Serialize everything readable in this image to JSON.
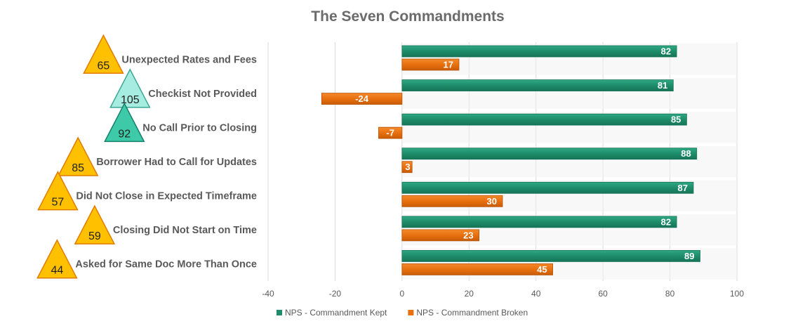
{
  "chart_data": {
    "type": "bar",
    "orientation": "horizontal",
    "title": "The Seven Commandments",
    "categories": [
      "Unexpected Rates and Fees",
      "Checkist Not Provided",
      "No Call Prior to Closing",
      "Borrower Had to Call for Updates",
      "Did Not Close in Expected Timeframe",
      "Closing Did Not Start on Time",
      "Asked for Same Doc More Than Once"
    ],
    "category_badges": [
      {
        "value": "65",
        "color": "#ffc000"
      },
      {
        "value": "105",
        "color": "#a6ece0"
      },
      {
        "value": "92",
        "color": "#3ecaa8"
      },
      {
        "value": "85",
        "color": "#ffc000"
      },
      {
        "value": "57",
        "color": "#ffc000"
      },
      {
        "value": "59",
        "color": "#ffc000"
      },
      {
        "value": "44",
        "color": "#ffc000"
      }
    ],
    "series": [
      {
        "name": "NPS - Commandment Kept",
        "color": "#1e8c6a",
        "values": [
          82,
          81,
          85,
          88,
          87,
          82,
          89
        ]
      },
      {
        "name": "NPS - Commandment Broken",
        "color": "#e8700f",
        "values": [
          17,
          -24,
          -7,
          3,
          30,
          23,
          45
        ]
      }
    ],
    "xlim": [
      -40,
      100
    ],
    "xticks": [
      "-40",
      "-20",
      "0",
      "20",
      "40",
      "60",
      "80",
      "100"
    ],
    "xlabel": "",
    "ylabel": "",
    "grid": true,
    "legend_position": "bottom"
  }
}
